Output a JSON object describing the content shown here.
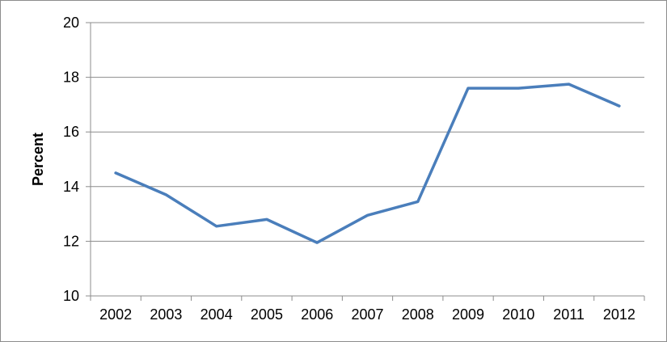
{
  "chart_data": {
    "type": "line",
    "ylabel": "Percent",
    "xlabel": "",
    "ylim": [
      10,
      20
    ],
    "yticks": [
      10,
      12,
      14,
      16,
      18,
      20
    ],
    "grid": true,
    "categories": [
      "2002",
      "2003",
      "2004",
      "2005",
      "2006",
      "2007",
      "2008",
      "2009",
      "2010",
      "2011",
      "2012"
    ],
    "series": [
      {
        "values": [
          14.5,
          13.7,
          12.55,
          12.8,
          11.95,
          12.95,
          13.45,
          17.6,
          17.6,
          17.75,
          16.95
        ],
        "color": "#4a7ebb"
      }
    ],
    "colors": {
      "gridline": "#8c8c8c",
      "axis": "#8c8c8c"
    }
  }
}
